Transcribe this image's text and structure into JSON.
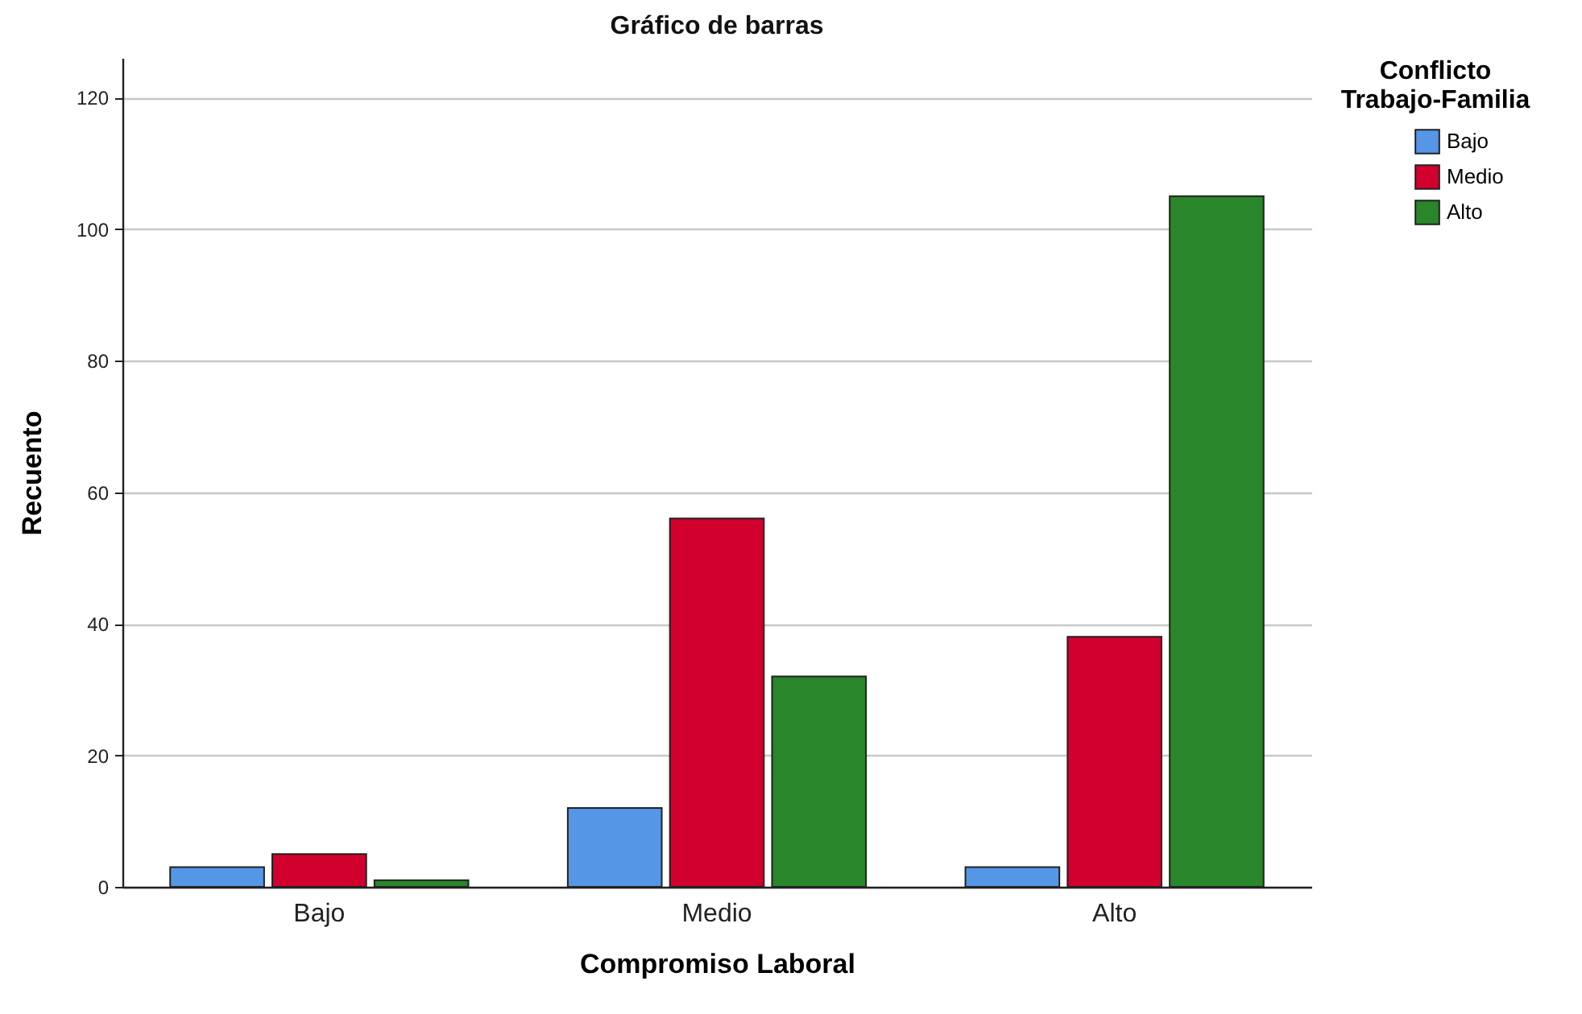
{
  "chart_data": {
    "type": "bar",
    "title": "Gráfico de barras",
    "xlabel": "Compromiso Laboral",
    "ylabel": "Recuento",
    "legend_title": "Conflicto Trabajo-Familia",
    "categories": [
      "Bajo",
      "Medio",
      "Alto"
    ],
    "series": [
      {
        "name": "Bajo",
        "color": "#5596e6",
        "values": [
          3,
          12,
          3
        ]
      },
      {
        "name": "Medio",
        "color": "#d2002d",
        "values": [
          5,
          56,
          38
        ]
      },
      {
        "name": "Alto",
        "color": "#29862a",
        "values": [
          1,
          32,
          105
        ]
      }
    ],
    "ylim": [
      0,
      126
    ],
    "yticks": [
      0,
      20,
      40,
      60,
      80,
      100,
      120
    ],
    "grid": "y",
    "legend": "top right"
  }
}
